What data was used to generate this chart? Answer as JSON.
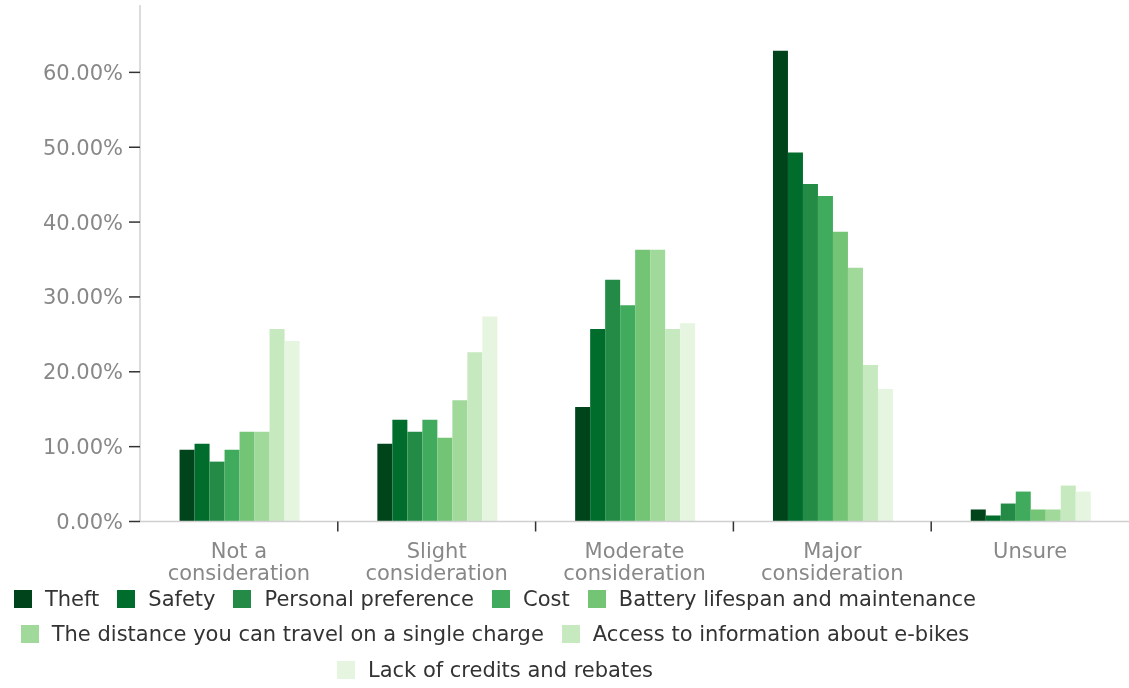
{
  "chart_data": {
    "type": "bar",
    "categories": [
      "Not a consideration",
      "Slight consideration",
      "Moderate consideration",
      "Major consideration",
      "Unsure"
    ],
    "series": [
      {
        "name": "Theft",
        "color": "#00441b",
        "values": [
          9.6,
          10.4,
          15.3,
          62.9,
          1.6
        ]
      },
      {
        "name": "Safety",
        "color": "#006d2c",
        "values": [
          10.4,
          13.6,
          25.7,
          49.3,
          0.8
        ]
      },
      {
        "name": "Personal preference",
        "color": "#238b45",
        "values": [
          8.0,
          12.0,
          32.3,
          45.1,
          2.4
        ]
      },
      {
        "name": "Cost",
        "color": "#41ab5d",
        "values": [
          9.6,
          13.6,
          28.9,
          43.5,
          4.0
        ]
      },
      {
        "name": "Battery lifespan and maintenance",
        "color": "#74c476",
        "values": [
          12.0,
          11.2,
          36.3,
          38.7,
          1.6
        ]
      },
      {
        "name": "The distance you can travel on a single charge",
        "color": "#a1d99b",
        "values": [
          12.0,
          16.2,
          36.3,
          33.9,
          1.6
        ]
      },
      {
        "name": "Access to information about e-bikes",
        "color": "#c7e9c0",
        "values": [
          25.7,
          22.6,
          25.7,
          20.9,
          4.8
        ]
      },
      {
        "name": "Lack of credits and rebates",
        "color": "#e5f5e0",
        "values": [
          24.1,
          27.4,
          26.5,
          17.7,
          4.0
        ]
      }
    ],
    "ylim": [
      0,
      69
    ],
    "yticks": [
      {
        "value": 0,
        "label": "0.00%"
      },
      {
        "value": 10,
        "label": "10.00%"
      },
      {
        "value": 20,
        "label": "20.00%"
      },
      {
        "value": 30,
        "label": "30.00%"
      },
      {
        "value": 40,
        "label": "40.00%"
      },
      {
        "value": 50,
        "label": "50.00%"
      },
      {
        "value": 60,
        "label": "60.00%"
      }
    ],
    "legend": "bottom"
  }
}
